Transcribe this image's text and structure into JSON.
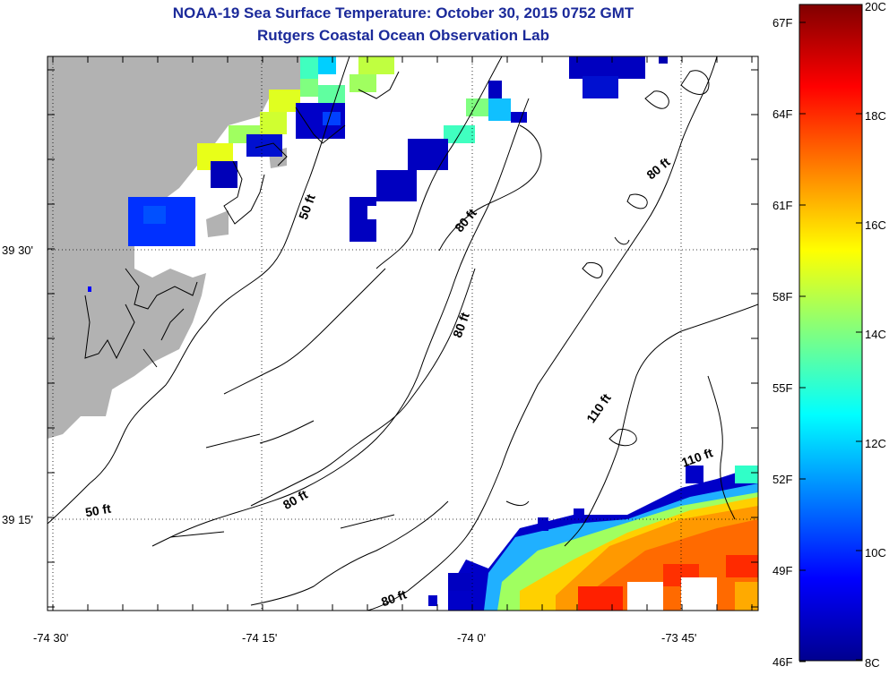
{
  "title_line1": "NOAA-19 Sea Surface Temperature:  October 30, 2015 0752 GMT",
  "title_line2": "Rutgers Coastal Ocean Observation Lab",
  "x_ticks": [
    "-74 30'",
    "-74 15'",
    "-74 0'",
    "-73 45'"
  ],
  "y_ticks": [
    "39 30'",
    "39 15'"
  ],
  "contour_labels": [
    "50 ft",
    "80 ft",
    "80 ft",
    "80 ft",
    "110 ft",
    "110 ft",
    "50 ft",
    "80 ft",
    "80 ft"
  ],
  "colorbar": {
    "celsius_labels": [
      "20C",
      "18C",
      "16C",
      "14C",
      "12C",
      "10C",
      "8C"
    ],
    "fahrenheit_labels": [
      "67F",
      "64F",
      "61F",
      "58F",
      "55F",
      "52F",
      "49F",
      "46F"
    ]
  },
  "colors": {
    "land": "#b2b2b2",
    "title": "#1b2a9a"
  }
}
